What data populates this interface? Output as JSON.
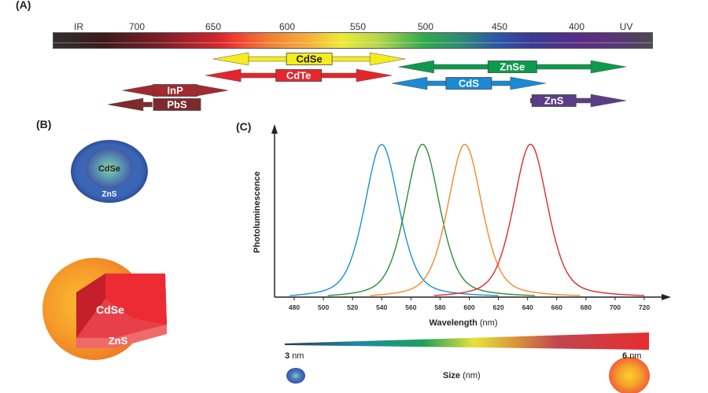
{
  "panels": {
    "a_label": "(A)",
    "b_label": "(B)",
    "c_label": "(C)"
  },
  "spectrum": {
    "tick_labels": [
      "IR",
      "700",
      "650",
      "600",
      "550",
      "500",
      "450",
      "400",
      "UV"
    ]
  },
  "materials": [
    {
      "name": "CdSe",
      "color": "#f5ec1e",
      "text_color": "#222222",
      "range_nm": [
        650,
        515
      ]
    },
    {
      "name": "CdTe",
      "color": "#e4262c",
      "text_color": "#ffffff",
      "range_nm": [
        655,
        525
      ]
    },
    {
      "name": "InP",
      "color": "#a02a2e",
      "text_color": "#ffffff",
      "range_nm": [
        705,
        640
      ]
    },
    {
      "name": "PbS",
      "color": "#7e2a2c",
      "text_color": "#ffffff",
      "range_nm": [
        710,
        690
      ]
    },
    {
      "name": "ZnSe",
      "color": "#0d9a4c",
      "text_color": "#ffffff",
      "range_nm": [
        520,
        380
      ]
    },
    {
      "name": "CdS",
      "color": "#1a8ad4",
      "text_color": "#ffffff",
      "range_nm": [
        525,
        420
      ]
    },
    {
      "name": "ZnS",
      "color": "#5b3d86",
      "text_color": "#ffffff",
      "range_nm": [
        430,
        380
      ]
    }
  ],
  "core_shell_small": {
    "core": "CdSe",
    "shell": "ZnS"
  },
  "core_shell_large": {
    "core": "CdSe",
    "shell": "ZnS"
  },
  "chart_data": {
    "type": "line",
    "title": "",
    "xlabel_bold": "Wavelength",
    "xlabel_unit": "(nm)",
    "ylabel": "Photoluminescence",
    "xlim": [
      465,
      735
    ],
    "ylim": [
      0,
      1
    ],
    "x_ticks": [
      480,
      500,
      520,
      540,
      560,
      580,
      600,
      620,
      640,
      660,
      680,
      700,
      720
    ],
    "grid": false,
    "legend": "none",
    "series": [
      {
        "name": "blue",
        "color": "#1a8fd6",
        "peak_nm": 540,
        "fwhm_nm": 28,
        "range_nm": [
          477,
          620
        ],
        "peak_value": 1.0
      },
      {
        "name": "green",
        "color": "#2e8b3a",
        "peak_nm": 568,
        "fwhm_nm": 28,
        "range_nm": [
          503,
          645
        ],
        "peak_value": 1.0
      },
      {
        "name": "orange",
        "color": "#f28a2a",
        "peak_nm": 597,
        "fwhm_nm": 28,
        "range_nm": [
          532,
          676
        ],
        "peak_value": 1.0
      },
      {
        "name": "red",
        "color": "#e02a2a",
        "peak_nm": 642,
        "fwhm_nm": 28,
        "range_nm": [
          576,
          720
        ],
        "peak_value": 1.0
      }
    ]
  },
  "size_scale": {
    "min_label_value": "3",
    "min_label_unit": "nm",
    "max_label_value": "6",
    "max_label_unit": "nm",
    "title_bold": "Size",
    "title_unit": "(nm)"
  }
}
